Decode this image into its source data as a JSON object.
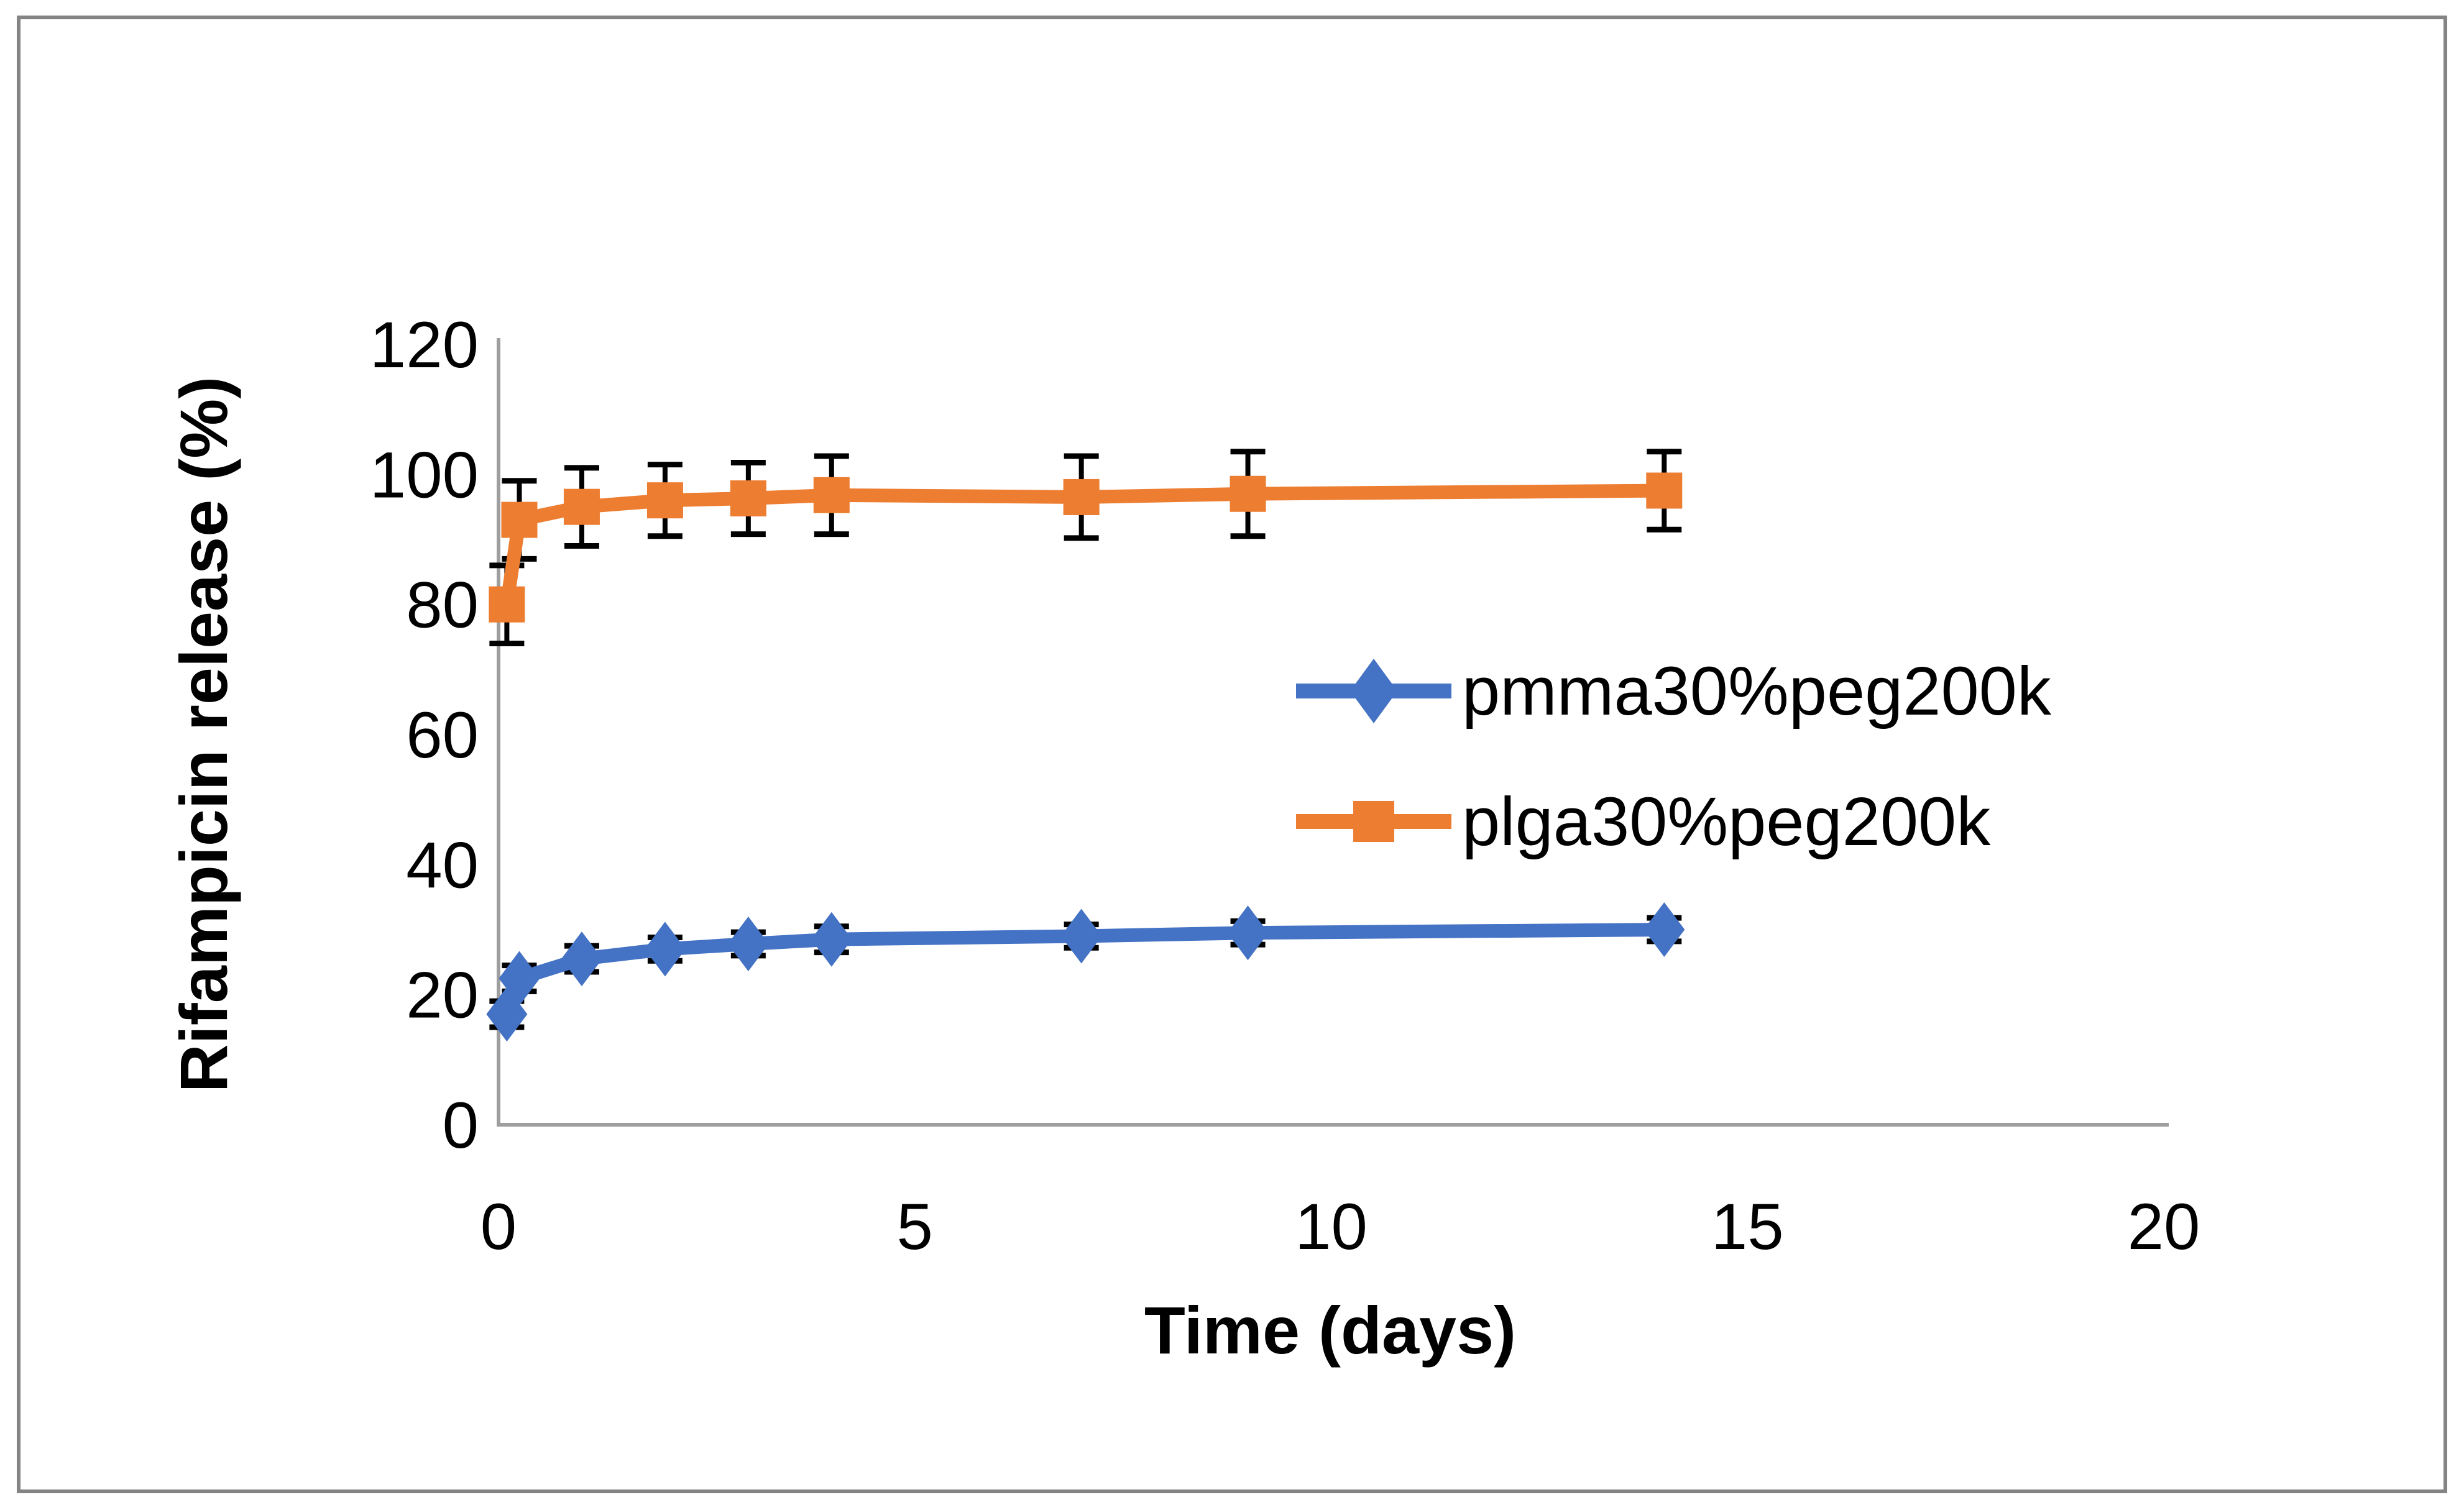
{
  "figure": {
    "background": "#ffffff",
    "border_color": "#848484"
  },
  "chart_data": {
    "type": "line",
    "title": "",
    "xlabel": "Time (days)",
    "ylabel": "Rifampicin release (%)",
    "xlim": [
      0,
      20
    ],
    "ylim": [
      0,
      120
    ],
    "xticks": [
      0,
      5,
      10,
      15,
      20
    ],
    "yticks": [
      0,
      20,
      40,
      60,
      80,
      100,
      120
    ],
    "grid": false,
    "axis_color": "#9e9e9e",
    "error_bar_color": "#000000",
    "legend_position": "middle-right",
    "x": [
      0.1,
      0.25,
      1,
      2,
      3,
      4,
      7,
      9,
      14
    ],
    "series": [
      {
        "name": "pmma30%peg200k",
        "color": "#4472C4",
        "marker": "diamond",
        "values": [
          17,
          22.5,
          25.5,
          27,
          27.8,
          28.5,
          29,
          29.5,
          30
        ],
        "errors": [
          2,
          2,
          2,
          1.8,
          1.8,
          2,
          1.8,
          1.8,
          1.8
        ]
      },
      {
        "name": "plga30%peg200k",
        "color": "#ED7D31",
        "marker": "square",
        "values": [
          80,
          93,
          95,
          96,
          96.3,
          96.8,
          96.5,
          97,
          97.5
        ],
        "errors": [
          6,
          6,
          6,
          5.5,
          5.5,
          6,
          6.3,
          6.5,
          6
        ]
      }
    ]
  }
}
